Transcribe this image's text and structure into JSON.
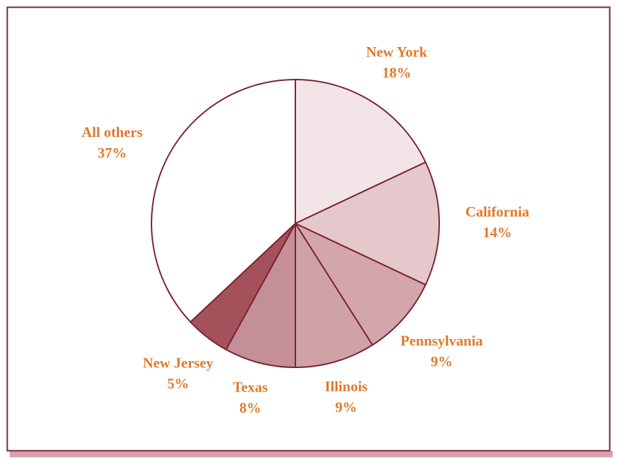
{
  "chart_data": {
    "type": "pie",
    "categories": [
      "New York",
      "California",
      "Pennsylvania",
      "Illinois",
      "Texas",
      "New Jersey",
      "All others"
    ],
    "values": [
      18,
      14,
      9,
      9,
      8,
      5,
      37
    ],
    "value_labels": [
      "18%",
      "14%",
      "9%",
      "9%",
      "8%",
      "5%",
      "37%"
    ],
    "colors": [
      "#f3e5e7",
      "#e4c8cb",
      "#d3a6ab",
      "#cfa2a8",
      "#c48f96",
      "#a5515c",
      "#ffffff"
    ]
  }
}
